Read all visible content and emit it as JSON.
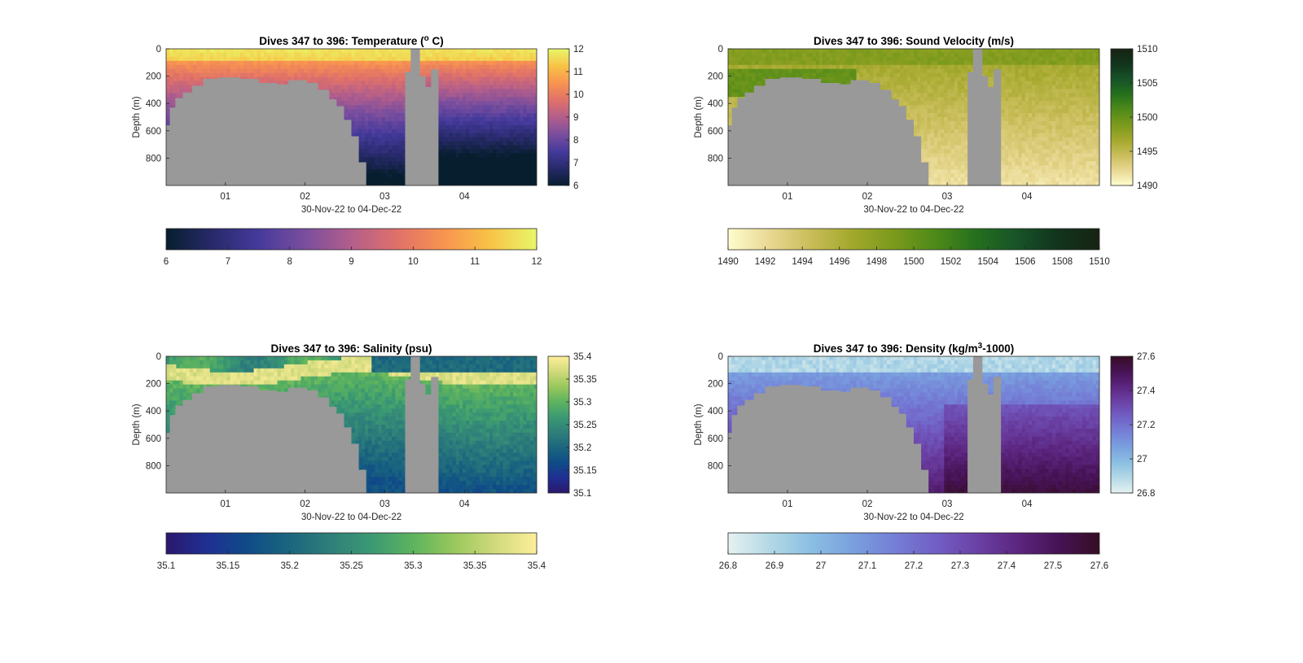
{
  "palette": {
    "bathymetry": "#999999",
    "axes": "#262626",
    "background": "#ffffff"
  },
  "chart_data": [
    {
      "type": "heatmap",
      "title_pre": "Dives 347 to 396: Temperature (",
      "title_sup": "o",
      "title_post": " C)",
      "xlabel": "30-Nov-22 to 04-Dec-22",
      "ylabel": "Depth (m)",
      "x_ticks": [
        "01",
        "02",
        "03",
        "04"
      ],
      "y_ticks": [
        "0",
        "200",
        "400",
        "600",
        "800"
      ],
      "ylim": [
        0,
        1000
      ],
      "y_reversed": true,
      "colormap_name": "thermal",
      "colorbar_right": {
        "ticks": [
          "12",
          "11",
          "10",
          "9",
          "8",
          "7",
          "6"
        ],
        "range": [
          6,
          12
        ]
      },
      "colorbar_bottom": {
        "ticks": [
          "6",
          "7",
          "8",
          "9",
          "10",
          "11",
          "12"
        ],
        "range": [
          6,
          12
        ]
      },
      "colormap": [
        "#071e2e",
        "#272a6a",
        "#453a9c",
        "#7a4e9e",
        "#b35e8b",
        "#e07169",
        "#f89450",
        "#f8c346",
        "#e8f76a"
      ]
    },
    {
      "type": "heatmap",
      "title_pre": "Dives 347 to 396: Sound Velocity (m/s)",
      "title_sup": "",
      "title_post": "",
      "xlabel": "30-Nov-22 to 04-Dec-22",
      "ylabel": "Depth (m)",
      "x_ticks": [
        "01",
        "02",
        "03",
        "04"
      ],
      "y_ticks": [
        "0",
        "200",
        "400",
        "600",
        "800"
      ],
      "ylim": [
        0,
        1000
      ],
      "y_reversed": true,
      "colormap_name": "speed",
      "colorbar_right": {
        "ticks": [
          "1510",
          "1505",
          "1500",
          "1495",
          "1490"
        ],
        "range": [
          1490,
          1510
        ]
      },
      "colorbar_bottom": {
        "ticks": [
          "1490",
          "1492",
          "1494",
          "1496",
          "1498",
          "1500",
          "1502",
          "1504",
          "1506",
          "1508",
          "1510"
        ],
        "range": [
          1490,
          1510
        ]
      },
      "colormap": [
        "#fffdcd",
        "#e8d893",
        "#c9bd5a",
        "#a3a82c",
        "#7b9a1c",
        "#4f8a19",
        "#25701d",
        "#175328",
        "#11341c",
        "#172313"
      ]
    },
    {
      "type": "heatmap",
      "title_pre": "Dives 347 to 396: Salinity (psu)",
      "title_sup": "",
      "title_post": "",
      "xlabel": "30-Nov-22 to 04-Dec-22",
      "ylabel": "Depth (m)",
      "x_ticks": [
        "01",
        "02",
        "03",
        "04"
      ],
      "y_ticks": [
        "0",
        "200",
        "400",
        "600",
        "800"
      ],
      "ylim": [
        0,
        1000
      ],
      "y_reversed": true,
      "colormap_name": "haline",
      "colorbar_right": {
        "ticks": [
          "35.4",
          "35.35",
          "35.3",
          "35.25",
          "35.2",
          "35.15",
          "35.1"
        ],
        "range": [
          35.1,
          35.4
        ]
      },
      "colorbar_bottom": {
        "ticks": [
          "35.1",
          "35.15",
          "35.2",
          "35.25",
          "35.3",
          "35.35",
          "35.4"
        ],
        "range": [
          35.1,
          35.4
        ]
      },
      "colormap": [
        "#2a186c",
        "#1f2f93",
        "#0f4c87",
        "#1b667e",
        "#2f7f7a",
        "#3b9a72",
        "#5db35e",
        "#99c85c",
        "#d1da7d",
        "#fdef9a"
      ]
    },
    {
      "type": "heatmap",
      "title_pre": "Dives 347 to 396: Density (kg/m",
      "title_sup": "3",
      "title_post": "-1000)",
      "xlabel": "30-Nov-22 to 04-Dec-22",
      "ylabel": "Depth (m)",
      "x_ticks": [
        "01",
        "02",
        "03",
        "04"
      ],
      "y_ticks": [
        "0",
        "200",
        "400",
        "600",
        "800"
      ],
      "ylim": [
        0,
        1000
      ],
      "y_reversed": true,
      "colormap_name": "dense",
      "colorbar_right": {
        "ticks": [
          "27.6",
          "27.4",
          "27.2",
          "27",
          "26.8"
        ],
        "range": [
          26.8,
          27.6
        ]
      },
      "colorbar_bottom": {
        "ticks": [
          "26.8",
          "26.9",
          "27",
          "27.1",
          "27.2",
          "27.3",
          "27.4",
          "27.5",
          "27.6"
        ],
        "range": [
          26.8,
          27.6
        ]
      },
      "colormap": [
        "#e6f1f1",
        "#b4d9e6",
        "#8bbfe2",
        "#7aa1df",
        "#7480d6",
        "#7260c6",
        "#6b42a6",
        "#5c2680",
        "#461355",
        "#360d24"
      ]
    }
  ]
}
